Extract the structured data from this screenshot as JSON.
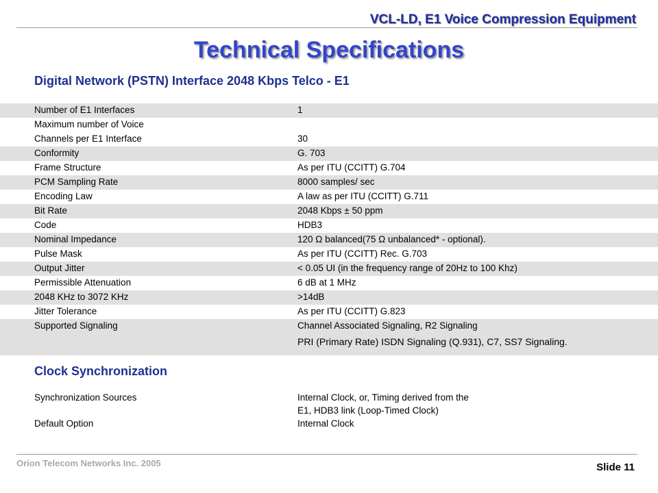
{
  "header": {
    "subtitle": "VCL-LD, E1 Voice Compression Equipment"
  },
  "title": "Technical Specifications",
  "section1": {
    "heading": "Digital Network (PSTN) Interface 2048 Kbps Telco - E1",
    "rows": [
      {
        "label": "Number of E1 Interfaces",
        "value": "1"
      },
      {
        "label": "Maximum number of Voice",
        "value": ""
      },
      {
        "label": "Channels per E1 Interface",
        "value": "30"
      },
      {
        "label": "Conformity",
        "value": "G. 703"
      },
      {
        "label": "Frame Structure",
        "value": "As per ITU (CCITT) G.704"
      },
      {
        "label": "PCM Sampling Rate",
        "value": "8000 samples/ sec"
      },
      {
        "label": "Encoding Law",
        "value": "A  law  as per ITU (CCITT) G.711"
      },
      {
        "label": "Bit Rate",
        "value": "2048 Kbps ± 50 ppm"
      },
      {
        "label": "Code",
        "value": "HDB3"
      },
      {
        "label": "Nominal Impedance",
        "value": "120 Ω balanced(75 Ω unbalanced* - optional)."
      },
      {
        "label": "Pulse Mask",
        "value": "As per ITU (CCITT) Rec. G.703"
      },
      {
        "label": "Output Jitter",
        "value": "< 0.05 UI (in the frequency range of 20Hz to 100 Khz)"
      },
      {
        "label": "Permissible Attenuation",
        "value": "6 dB at 1 MHz"
      },
      {
        "label": "2048 KHz to 3072 KHz",
        "value": ">14dB"
      },
      {
        "label": "Jitter Tolerance",
        "value": "As per ITU (CCITT) G.823"
      },
      {
        "label": "Supported Signaling",
        "value": "Channel Associated Signaling, R2 Signaling",
        "value2": "PRI  (Primary Rate) ISDN Signaling (Q.931), C7, SS7 Signaling."
      }
    ]
  },
  "section2": {
    "heading": "Clock Synchronization",
    "rows": [
      {
        "label": "Synchronization Sources",
        "value": "Internal Clock, or, Timing derived from the",
        "value2": "E1, HDB3 link (Loop-Timed Clock)"
      },
      {
        "label": "Default Option",
        "value": "Internal Clock"
      }
    ]
  },
  "footer": {
    "company": "Orion  Telecom Networks Inc. 2005",
    "slide": "Slide 11"
  }
}
